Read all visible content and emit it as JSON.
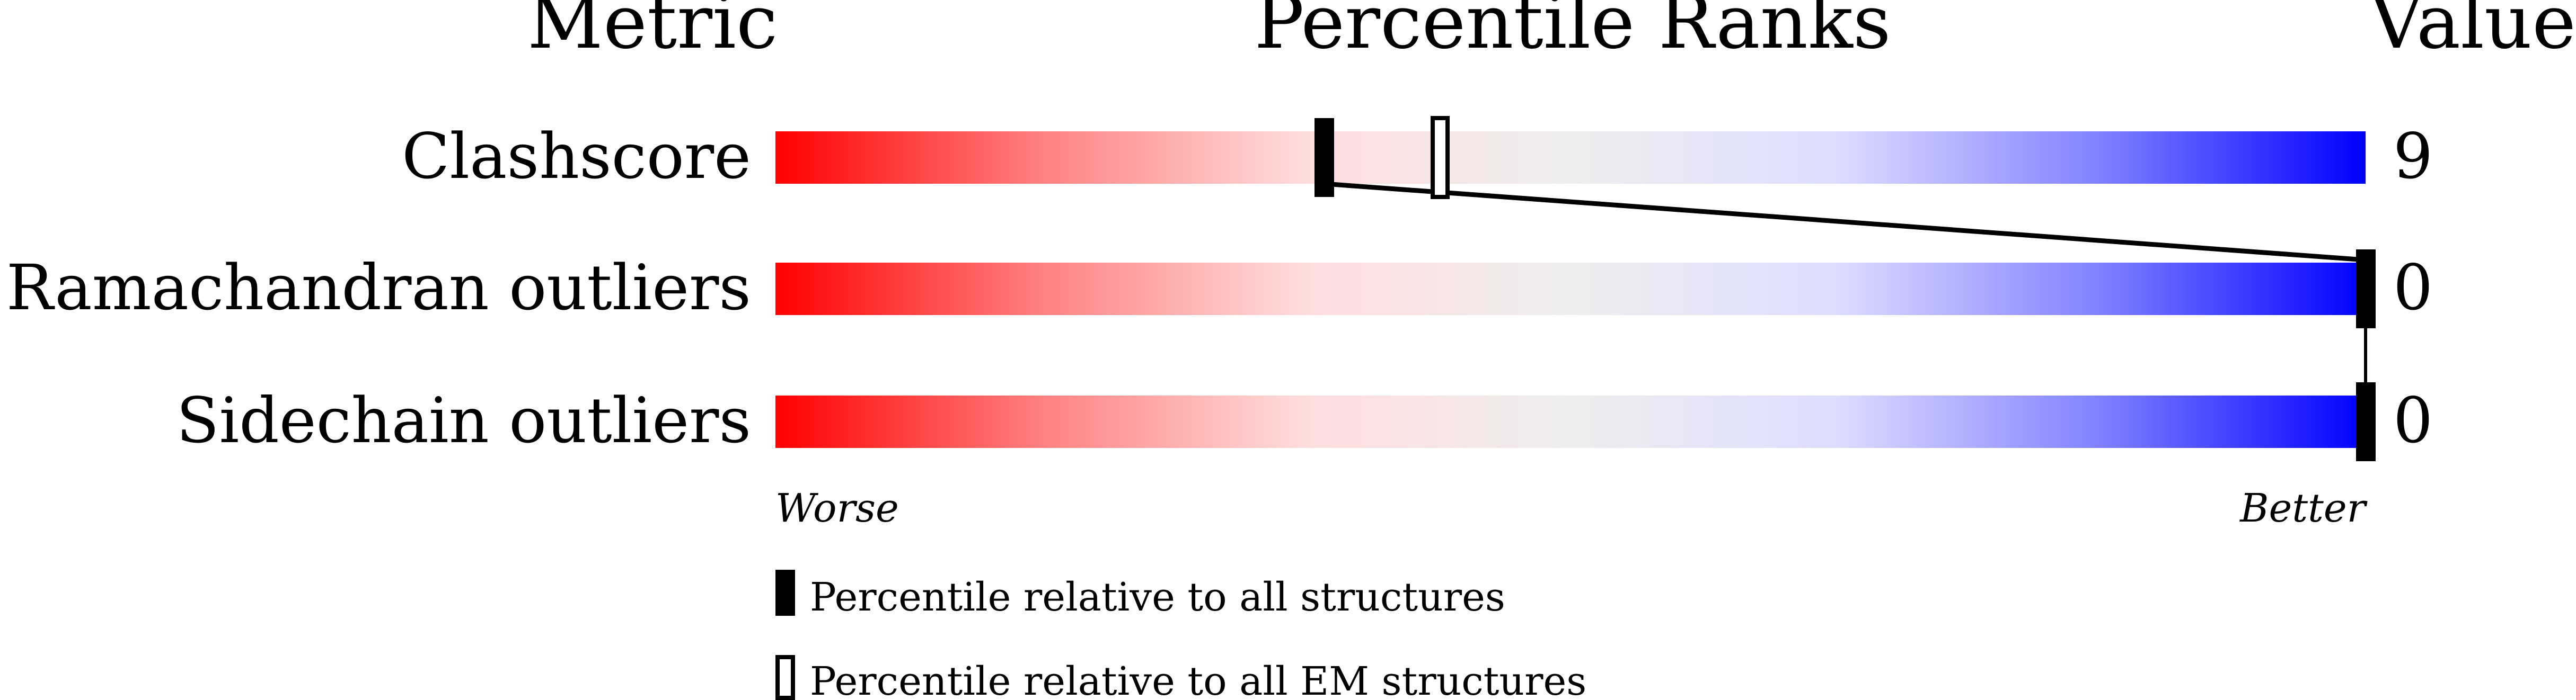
{
  "chart_data": {
    "type": "percentile-slider",
    "headers": {
      "metric": "Metric",
      "ranks": "Percentile Ranks",
      "value": "Value"
    },
    "xlim": [
      0,
      100
    ],
    "rows": [
      {
        "metric": "Clashscore",
        "value": "9",
        "percentile_all": 34.5,
        "percentile_em": 41.8
      },
      {
        "metric": "Ramachandran outliers",
        "value": "0",
        "percentile_all": 100
      },
      {
        "metric": "Sidechain outliers",
        "value": "0",
        "percentile_all": 100
      }
    ],
    "axis_labels": {
      "worse": "Worse",
      "better": "Better"
    },
    "legend": [
      {
        "label": "Percentile relative to all structures",
        "marker": "filled"
      },
      {
        "label": "Percentile relative to all EM structures",
        "marker": "open"
      }
    ],
    "gradient_colors": [
      "#ff0000",
      "#ff8080",
      "#ffdddd",
      "#eeeeee",
      "#ddddff",
      "#8080ff",
      "#0000ff"
    ]
  }
}
